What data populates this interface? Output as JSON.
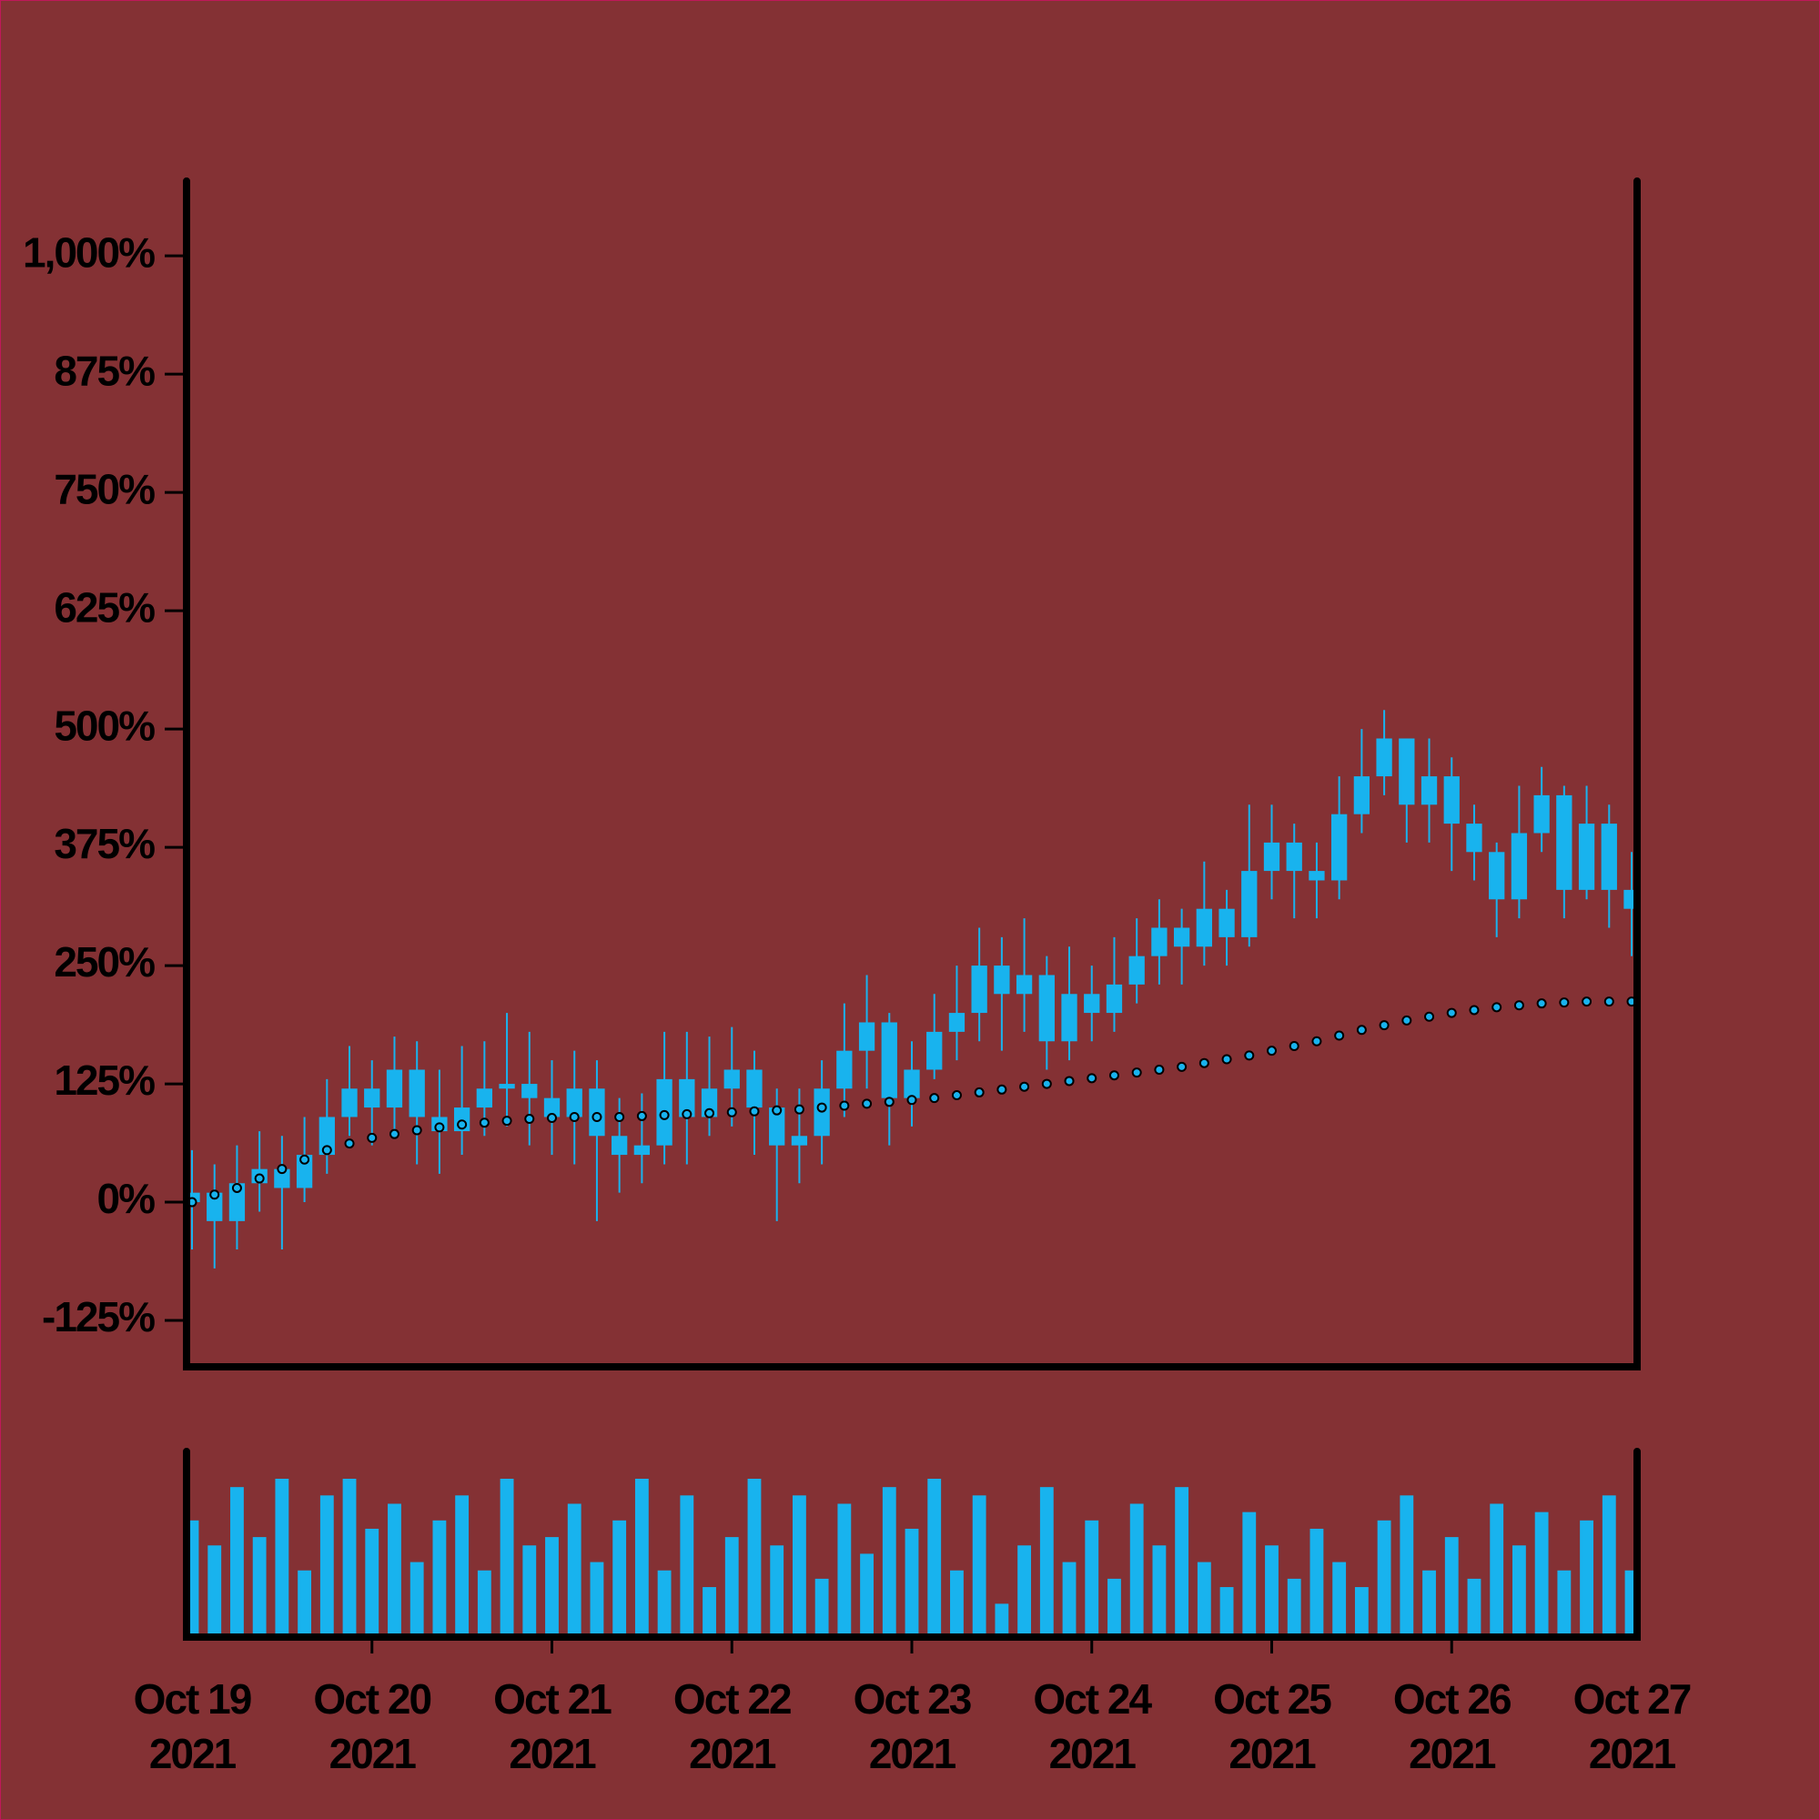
{
  "chart_data": {
    "type": "candlestick",
    "categories": [
      "Oct 19 2021",
      null,
      null,
      null,
      null,
      null,
      null,
      null,
      "Oct 20 2021",
      null,
      null,
      null,
      null,
      null,
      null,
      null,
      "Oct 21 2021",
      null,
      null,
      null,
      null,
      null,
      null,
      null,
      "Oct 22 2021",
      null,
      null,
      null,
      null,
      null,
      null,
      null,
      "Oct 23 2021",
      null,
      null,
      null,
      null,
      null,
      null,
      null,
      "Oct 24 2021",
      null,
      null,
      null,
      null,
      null,
      null,
      null,
      "Oct 25 2021",
      null,
      null,
      null,
      null,
      null,
      null,
      null,
      "Oct 26 2021",
      null,
      null,
      null,
      null,
      null,
      null,
      null,
      "Oct 27 2021"
    ],
    "open": [
      0,
      10,
      -20,
      20,
      35,
      15,
      50,
      90,
      120,
      100,
      140,
      90,
      75,
      100,
      120,
      125,
      110,
      90,
      120,
      70,
      50,
      60,
      130,
      90,
      120,
      140,
      100,
      60,
      70,
      120,
      160,
      190,
      110,
      140,
      180,
      200,
      250,
      220,
      240,
      170,
      220,
      200,
      230,
      260,
      290,
      270,
      310,
      280,
      350,
      380,
      350,
      340,
      410,
      450,
      490,
      420,
      450,
      400,
      370,
      320,
      390,
      430,
      330,
      400,
      330
    ],
    "high": [
      55,
      40,
      60,
      75,
      70,
      90,
      130,
      165,
      150,
      175,
      170,
      140,
      165,
      170,
      200,
      180,
      150,
      160,
      150,
      110,
      115,
      180,
      180,
      175,
      185,
      160,
      120,
      120,
      150,
      210,
      240,
      200,
      170,
      220,
      250,
      290,
      280,
      300,
      260,
      270,
      250,
      280,
      300,
      320,
      310,
      360,
      330,
      420,
      420,
      400,
      380,
      450,
      500,
      520,
      490,
      490,
      470,
      420,
      380,
      440,
      460,
      440,
      440,
      420,
      370
    ],
    "low": [
      -50,
      -70,
      -50,
      -10,
      -50,
      0,
      30,
      70,
      60,
      70,
      40,
      30,
      50,
      70,
      80,
      60,
      50,
      40,
      -20,
      10,
      20,
      40,
      40,
      70,
      80,
      50,
      -20,
      20,
      40,
      90,
      120,
      60,
      80,
      130,
      150,
      170,
      160,
      180,
      140,
      150,
      170,
      180,
      210,
      230,
      230,
      250,
      250,
      270,
      320,
      300,
      300,
      320,
      390,
      430,
      380,
      380,
      350,
      340,
      280,
      300,
      370,
      300,
      320,
      290,
      260
    ],
    "close": [
      10,
      -20,
      20,
      35,
      15,
      50,
      90,
      120,
      100,
      140,
      90,
      75,
      100,
      120,
      125,
      110,
      90,
      120,
      70,
      50,
      60,
      130,
      90,
      120,
      140,
      100,
      60,
      70,
      120,
      160,
      190,
      110,
      140,
      180,
      200,
      250,
      220,
      240,
      170,
      220,
      200,
      230,
      260,
      290,
      270,
      310,
      280,
      350,
      380,
      350,
      340,
      410,
      450,
      490,
      420,
      450,
      400,
      370,
      320,
      390,
      430,
      330,
      400,
      330,
      310
    ],
    "moving_average": [
      0,
      8,
      15,
      25,
      35,
      45,
      55,
      62,
      68,
      72,
      76,
      79,
      82,
      84,
      86,
      88,
      89,
      90,
      90,
      90,
      91,
      92,
      93,
      94,
      95,
      96,
      97,
      98,
      100,
      102,
      104,
      106,
      108,
      110,
      113,
      116,
      119,
      122,
      125,
      128,
      131,
      134,
      137,
      140,
      143,
      147,
      151,
      155,
      160,
      165,
      170,
      176,
      182,
      187,
      192,
      196,
      200,
      203,
      206,
      208,
      210,
      211,
      212,
      212,
      212
    ],
    "volume": [
      70,
      55,
      90,
      60,
      95,
      40,
      85,
      95,
      65,
      80,
      45,
      70,
      85,
      40,
      95,
      55,
      60,
      80,
      45,
      70,
      95,
      40,
      85,
      30,
      60,
      95,
      55,
      85,
      35,
      80,
      50,
      90,
      65,
      95,
      40,
      85,
      20,
      55,
      90,
      45,
      70,
      35,
      80,
      55,
      90,
      45,
      30,
      75,
      55,
      35,
      65,
      45,
      30,
      70,
      85,
      40,
      60,
      35,
      80,
      55,
      75,
      40,
      70,
      85,
      40
    ],
    "ylim": [
      -174,
      1079
    ],
    "yticks": [
      {
        "value": -125,
        "label": "-125%"
      },
      {
        "value": 0,
        "label": "0%"
      },
      {
        "value": 125,
        "label": "125%"
      },
      {
        "value": 250,
        "label": "250%"
      },
      {
        "value": 375,
        "label": "375%"
      },
      {
        "value": 500,
        "label": "500%"
      },
      {
        "value": 625,
        "label": "625%"
      },
      {
        "value": 750,
        "label": "750%"
      },
      {
        "value": 875,
        "label": "875%"
      },
      {
        "value": 1000,
        "label": "1,000%"
      }
    ],
    "color": "#18b3ee",
    "ma_color": "#18b3ee",
    "background": "#843134"
  }
}
